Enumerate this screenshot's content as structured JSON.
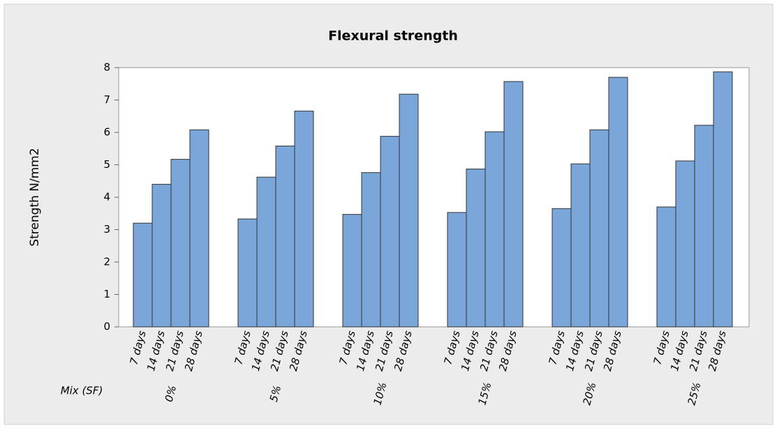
{
  "chart_data": {
    "type": "bar",
    "title": "Flexural strength",
    "y_label": "Strength N/mm2",
    "group_label": "Mix (SF)",
    "categories": [
      "0%",
      "5%",
      "10%",
      "15%",
      "20%",
      "25%"
    ],
    "series": [
      {
        "name": "7 days",
        "color": "#7aa6d9",
        "values": [
          3.2,
          3.33,
          3.47,
          3.53,
          3.65,
          3.7
        ]
      },
      {
        "name": "14 days",
        "color": "#7aa6d9",
        "values": [
          4.4,
          4.62,
          4.76,
          4.87,
          5.03,
          5.12
        ]
      },
      {
        "name": "21 days",
        "color": "#7aa6d9",
        "values": [
          5.17,
          5.58,
          5.88,
          6.02,
          6.08,
          6.22
        ]
      },
      {
        "name": "28 days",
        "color": "#7aa6d9",
        "values": [
          6.08,
          6.66,
          7.18,
          7.57,
          7.7,
          7.87
        ]
      }
    ],
    "ylim": [
      0,
      8
    ],
    "yticks": [
      0,
      1,
      2,
      3,
      4,
      5,
      6,
      7,
      8
    ],
    "grid": false
  }
}
